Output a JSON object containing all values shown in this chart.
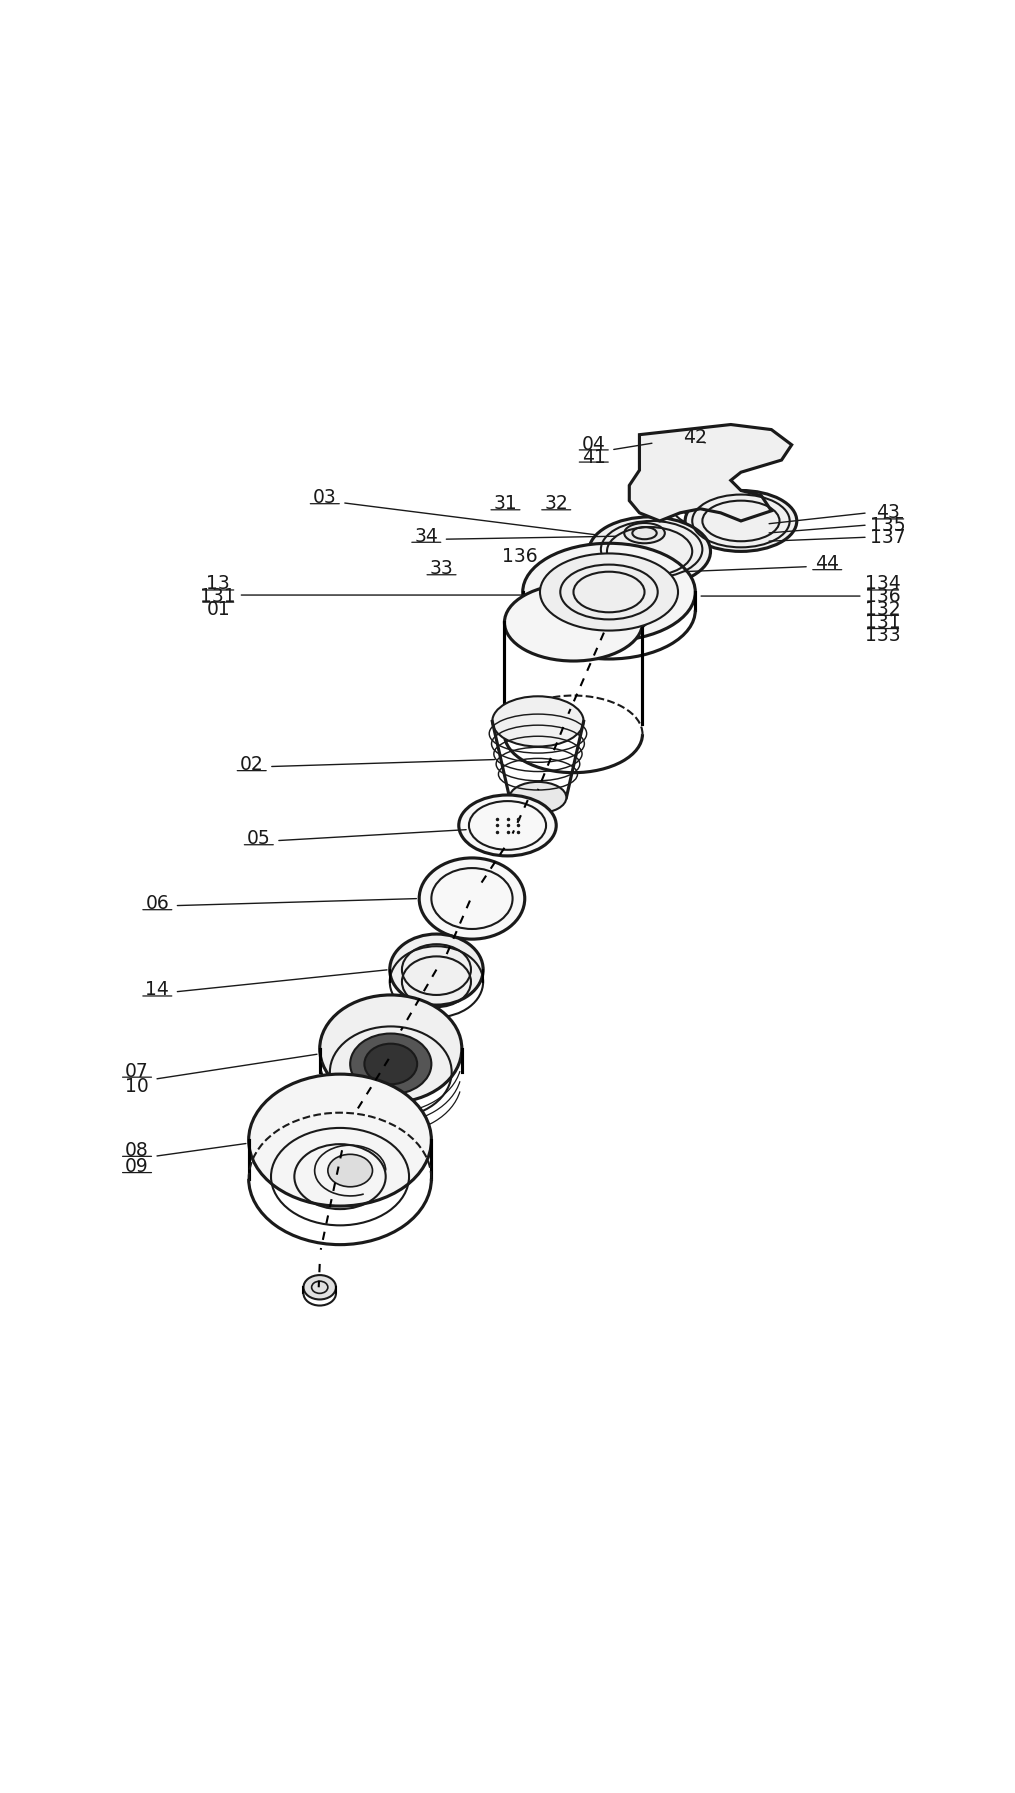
{
  "fig_width": 10.15,
  "fig_height": 17.93,
  "bg_color": "#ffffff",
  "line_color": "#1a1a1a",
  "lw": 1.5
}
